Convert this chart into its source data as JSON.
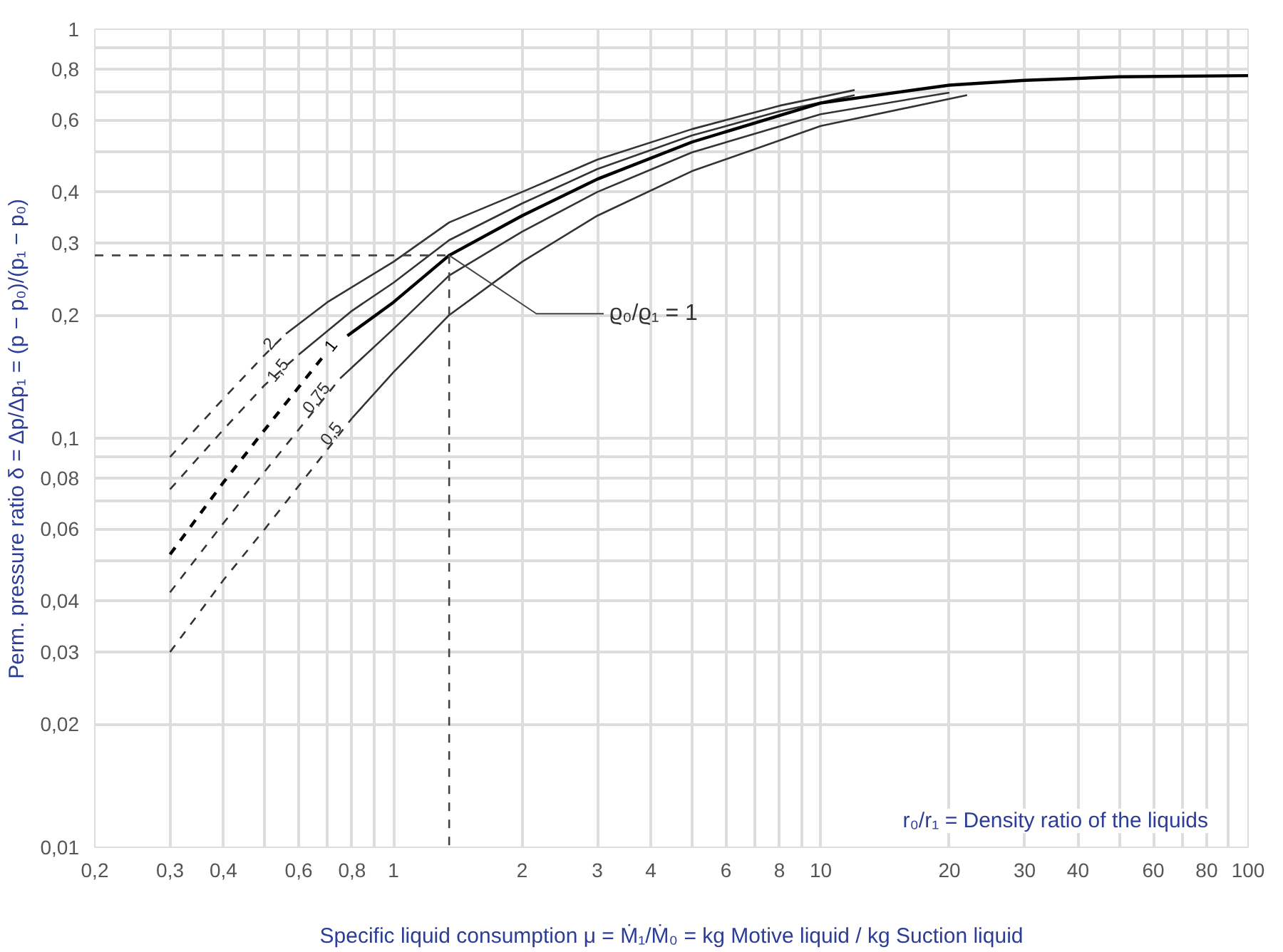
{
  "chart_data": {
    "type": "line",
    "log": "xy",
    "grid": true,
    "line_style": "solid",
    "xlabel": "Specific liquid consumption μ = Ṁ₁/Ṁ₀ = kg Motive liquid / kg Suction liquid",
    "ylabel": "Perm. pressure ratio δ = Δp/Δp₁ = (p − p₀)/(p₁ − p₀)",
    "xlim": [
      0.2,
      100
    ],
    "ylim": [
      0.01,
      1
    ],
    "xticks": [
      {
        "value": 0.2,
        "label": "0,2"
      },
      {
        "value": 0.3,
        "label": "0,3"
      },
      {
        "value": 0.4,
        "label": "0,4"
      },
      {
        "value": 0.5,
        "label": null
      },
      {
        "value": 0.6,
        "label": "0,6"
      },
      {
        "value": 0.7,
        "label": null
      },
      {
        "value": 0.8,
        "label": "0,8"
      },
      {
        "value": 0.9,
        "label": null
      },
      1,
      2,
      3,
      4,
      {
        "value": 5,
        "label": null
      },
      6,
      {
        "value": 7,
        "label": null
      },
      8,
      {
        "value": 9,
        "label": null
      },
      10,
      20,
      30,
      40,
      {
        "value": 50,
        "label": null
      },
      60,
      {
        "value": 70,
        "label": null
      },
      80,
      {
        "value": 90,
        "label": null
      },
      100
    ],
    "yticks": [
      {
        "value": 0.01,
        "label": "0,01"
      },
      {
        "value": 0.02,
        "label": "0,02"
      },
      {
        "value": 0.03,
        "label": "0,03"
      },
      {
        "value": 0.04,
        "label": "0,04"
      },
      {
        "value": 0.05,
        "label": null
      },
      {
        "value": 0.06,
        "label": "0,06"
      },
      {
        "value": 0.07,
        "label": null
      },
      {
        "value": 0.08,
        "label": "0,08"
      },
      {
        "value": 0.09,
        "label": null
      },
      {
        "value": 0.1,
        "label": "0,1"
      },
      {
        "value": 0.2,
        "label": "0,2"
      },
      {
        "value": 0.3,
        "label": "0,3"
      },
      {
        "value": 0.4,
        "label": "0,4"
      },
      {
        "value": 0.5,
        "label": null
      },
      {
        "value": 0.6,
        "label": "0,6"
      },
      {
        "value": 0.7,
        "label": null
      },
      {
        "value": 0.8,
        "label": "0,8"
      },
      {
        "value": 0.9,
        "label": null
      },
      1
    ],
    "series": [
      {
        "color": "#333333",
        "line_style": "dashed",
        "x": [
          0.3,
          0.4,
          0.5,
          0.56
        ],
        "values": [
          0.09,
          0.125,
          0.16,
          0.18
        ]
      },
      {
        "name": "2",
        "color": "#333333",
        "x": [
          0.56,
          0.7,
          1,
          1.35,
          2,
          3,
          5,
          8,
          12
        ],
        "values": [
          0.18,
          0.215,
          0.27,
          0.337,
          0.4,
          0.48,
          0.57,
          0.65,
          0.71
        ]
      },
      {
        "color": "#333333",
        "line_style": "dashed",
        "x": [
          0.3,
          0.4,
          0.5,
          0.6
        ],
        "values": [
          0.075,
          0.105,
          0.135,
          0.16
        ]
      },
      {
        "name": "1,5",
        "color": "#333333",
        "x": [
          0.6,
          0.8,
          1,
          1.35,
          2,
          3,
          5,
          8,
          12
        ],
        "values": [
          0.16,
          0.205,
          0.24,
          0.305,
          0.375,
          0.455,
          0.55,
          0.63,
          0.69
        ]
      },
      {
        "color": "#000000",
        "line_style": "dashed",
        "x": [
          0.3,
          0.4,
          0.5,
          0.68
        ],
        "values": [
          0.052,
          0.078,
          0.105,
          0.157
        ]
      },
      {
        "name": "1",
        "color": "#000000",
        "x": [
          0.78,
          1,
          1.35,
          2,
          3,
          5,
          10,
          20,
          30,
          50,
          100
        ],
        "values": [
          0.178,
          0.215,
          0.28,
          0.35,
          0.43,
          0.53,
          0.66,
          0.73,
          0.75,
          0.765,
          0.77
        ]
      },
      {
        "color": "#333333",
        "line_style": "dashed",
        "x": [
          0.3,
          0.4,
          0.5,
          0.75
        ],
        "values": [
          0.042,
          0.062,
          0.083,
          0.14
        ]
      },
      {
        "name": "0,75",
        "color": "#333333",
        "x": [
          0.75,
          1,
          1.35,
          2,
          3,
          5,
          10,
          20
        ],
        "values": [
          0.14,
          0.185,
          0.25,
          0.32,
          0.4,
          0.5,
          0.62,
          0.7
        ]
      },
      {
        "color": "#333333",
        "line_style": "dashed",
        "x": [
          0.3,
          0.4,
          0.5,
          0.8
        ],
        "values": [
          0.03,
          0.045,
          0.06,
          0.112
        ]
      },
      {
        "name": "0,5",
        "color": "#333333",
        "x": [
          0.8,
          1,
          1.35,
          2,
          3,
          5,
          10,
          22
        ],
        "values": [
          0.112,
          0.145,
          0.2,
          0.27,
          0.35,
          0.45,
          0.58,
          0.69
        ]
      },
      {
        "color": "#444444",
        "line_style": "dashed",
        "x": [
          0.2,
          1.35
        ],
        "values": [
          0.28,
          0.28
        ]
      },
      {
        "color": "#444444",
        "line_style": "dashed",
        "x": [
          1.35,
          1.35
        ],
        "values": [
          0.28,
          0.01
        ]
      }
    ],
    "annotations": [
      {
        "text": "ϱ₀/ϱ₁ = 1",
        "x": 1.35,
        "y": 0.28
      },
      "r₀/r₁ = Density ratio of the liquids"
    ]
  }
}
